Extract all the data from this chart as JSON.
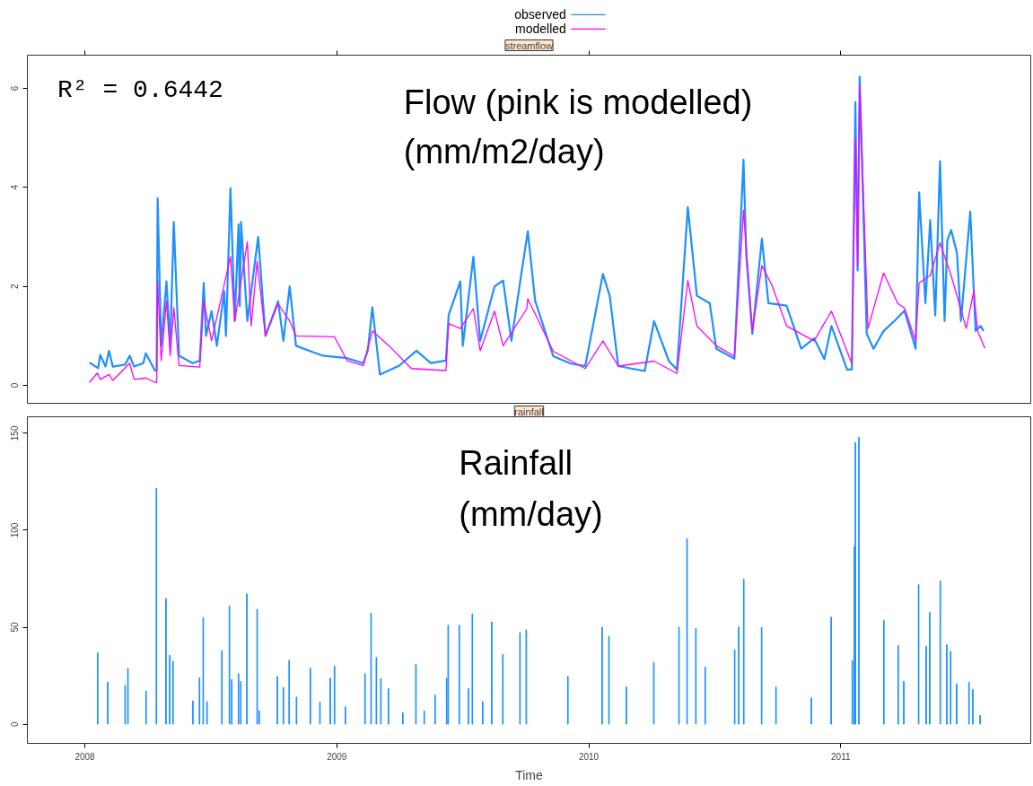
{
  "chart_data": [
    {
      "type": "line",
      "title": "streamflow",
      "xlim": [
        2007.772,
        2011.754
      ],
      "xticks": [
        2008,
        2009,
        2010,
        2011
      ],
      "ylim": [
        -0.38,
        6.67
      ],
      "yticks": [
        0,
        2,
        4,
        6
      ],
      "tick_labels": "y",
      "legend": "top",
      "annotations": [
        "R² = 0.6442",
        "Flow (pink is modelled)",
        "(mm/m2/day)"
      ],
      "series": [
        {
          "name": "observed",
          "color": "#1e90ff",
          "x": [
            2008.018,
            2008.053,
            2008.061,
            2008.082,
            2008.096,
            2008.111,
            2008.16,
            2008.178,
            2008.196,
            2008.232,
            2008.242,
            2008.278,
            2008.285,
            2008.289,
            2008.303,
            2008.324,
            2008.339,
            2008.353,
            2008.374,
            2008.428,
            2008.456,
            2008.472,
            2008.481,
            2008.503,
            2008.524,
            2008.553,
            2008.56,
            2008.578,
            2008.595,
            2008.61,
            2008.615,
            2008.62,
            2008.645,
            2008.688,
            2008.717,
            2008.767,
            2008.788,
            2008.813,
            2008.838,
            2008.891,
            2008.945,
            2009.041,
            2009.105,
            2009.123,
            2009.141,
            2009.171,
            2009.248,
            2009.316,
            2009.373,
            2009.433,
            2009.444,
            2009.49,
            2009.5,
            2009.542,
            2009.569,
            2009.626,
            2009.66,
            2009.693,
            2009.729,
            2009.758,
            2009.787,
            2009.859,
            2009.929,
            2009.986,
            2010.056,
            2010.083,
            2010.117,
            2010.222,
            2010.259,
            2010.318,
            2010.35,
            2010.393,
            2010.429,
            2010.48,
            2010.506,
            2010.578,
            2010.596,
            2010.614,
            2010.625,
            2010.649,
            2010.687,
            2010.713,
            2010.785,
            2010.843,
            2010.894,
            2010.935,
            2010.963,
            2011.025,
            2011.044,
            2011.058,
            2011.067,
            2011.075,
            2011.103,
            2011.13,
            2011.17,
            2011.213,
            2011.253,
            2011.297,
            2011.311,
            2011.336,
            2011.355,
            2011.375,
            2011.394,
            2011.412,
            2011.423,
            2011.438,
            2011.461,
            2011.477,
            2011.514,
            2011.535,
            2011.555,
            2011.567
          ],
          "values": [
            0.46,
            0.35,
            0.62,
            0.38,
            0.7,
            0.38,
            0.42,
            0.6,
            0.38,
            0.45,
            0.65,
            0.3,
            0.3,
            3.78,
            0.8,
            2.1,
            0.8,
            3.3,
            0.6,
            0.45,
            0.5,
            2.07,
            1.0,
            1.5,
            0.8,
            1.9,
            1.0,
            3.98,
            1.3,
            3.25,
            1.6,
            3.3,
            1.3,
            3.0,
            1.0,
            1.7,
            0.9,
            2.0,
            0.8,
            0.7,
            0.6,
            0.55,
            0.45,
            0.7,
            1.58,
            0.22,
            0.4,
            0.7,
            0.45,
            0.5,
            1.42,
            2.1,
            0.8,
            2.6,
            0.9,
            2.0,
            2.12,
            0.9,
            2.14,
            3.11,
            1.71,
            0.59,
            0.44,
            0.39,
            2.25,
            1.81,
            0.39,
            0.29,
            1.3,
            0.49,
            0.32,
            3.6,
            1.81,
            1.66,
            0.74,
            0.54,
            2.53,
            4.56,
            2.63,
            1.04,
            2.96,
            1.66,
            1.61,
            0.74,
            0.95,
            0.53,
            1.2,
            0.32,
            0.32,
            5.72,
            2.32,
            6.24,
            1.04,
            0.74,
            1.1,
            1.3,
            1.51,
            0.74,
            3.9,
            1.66,
            3.34,
            1.41,
            4.53,
            1.3,
            2.93,
            3.14,
            2.68,
            1.3,
            3.51,
            1.1,
            1.2,
            1.1
          ]
        },
        {
          "name": "modelled",
          "color": "#ff00ff",
          "x": [
            2008.018,
            2008.05,
            2008.061,
            2008.096,
            2008.111,
            2008.178,
            2008.196,
            2008.242,
            2008.278,
            2008.285,
            2008.289,
            2008.303,
            2008.324,
            2008.339,
            2008.353,
            2008.374,
            2008.456,
            2008.472,
            2008.503,
            2008.578,
            2008.595,
            2008.645,
            2008.66,
            2008.684,
            2008.717,
            2008.767,
            2008.813,
            2008.838,
            2008.991,
            2009.041,
            2009.105,
            2009.141,
            2009.207,
            2009.296,
            2009.433,
            2009.444,
            2009.49,
            2009.542,
            2009.569,
            2009.626,
            2009.66,
            2009.754,
            2009.758,
            2009.859,
            2009.986,
            2010.056,
            2010.117,
            2010.259,
            2010.35,
            2010.393,
            2010.429,
            2010.506,
            2010.578,
            2010.614,
            2010.649,
            2010.687,
            2010.727,
            2010.785,
            2010.894,
            2010.963,
            2011.044,
            2011.058,
            2011.067,
            2011.075,
            2011.108,
            2011.17,
            2011.226,
            2011.253,
            2011.297,
            2011.311,
            2011.355,
            2011.394,
            2011.438,
            2011.498,
            2011.528,
            2011.543,
            2011.572
          ],
          "values": [
            0.06,
            0.25,
            0.12,
            0.22,
            0.1,
            0.45,
            0.12,
            0.15,
            0.06,
            0.06,
            2.1,
            0.5,
            1.7,
            0.6,
            1.57,
            0.4,
            0.37,
            1.7,
            0.9,
            2.6,
            1.3,
            2.9,
            1.2,
            2.5,
            1.0,
            1.65,
            1.3,
            1.0,
            0.98,
            0.5,
            0.4,
            1.1,
            0.8,
            0.34,
            0.3,
            1.25,
            1.15,
            1.55,
            0.7,
            1.5,
            0.8,
            1.55,
            1.75,
            0.69,
            0.34,
            0.9,
            0.39,
            0.49,
            0.24,
            2.12,
            1.2,
            0.8,
            0.59,
            3.54,
            1.1,
            2.42,
            2.02,
            1.2,
            0.9,
            1.5,
            0.44,
            5.0,
            2.42,
            6.07,
            1.15,
            2.27,
            1.66,
            1.56,
            0.9,
            2.07,
            2.22,
            2.88,
            2.22,
            1.15,
            1.91,
            1.1,
            0.75
          ]
        }
      ]
    },
    {
      "type": "bar",
      "title": "rainfall",
      "xlabel": "Time",
      "xlim": [
        2007.772,
        2011.754
      ],
      "xticks": [
        2008,
        2009,
        2010,
        2011
      ],
      "ylim": [
        -9.9,
        158.5
      ],
      "yticks": [
        0,
        50,
        100,
        150
      ],
      "color": "#1e90ff",
      "annotations": [
        "Rainfall",
        "(mm/day)"
      ],
      "x": [
        2008.051,
        2008.091,
        2008.16,
        2008.171,
        2008.243,
        2008.284,
        2008.322,
        2008.337,
        2008.35,
        2008.429,
        2008.455,
        2008.47,
        2008.485,
        2008.544,
        2008.574,
        2008.583,
        2008.61,
        2008.619,
        2008.643,
        2008.684,
        2008.692,
        2008.764,
        2008.788,
        2008.811,
        2008.84,
        2008.895,
        2008.933,
        2008.974,
        2008.991,
        2009.034,
        2009.112,
        2009.136,
        2009.157,
        2009.175,
        2009.205,
        2009.262,
        2009.314,
        2009.347,
        2009.39,
        2009.436,
        2009.442,
        2009.486,
        2009.522,
        2009.538,
        2009.579,
        2009.615,
        2009.659,
        2009.727,
        2009.752,
        2009.917,
        2010.053,
        2010.08,
        2010.149,
        2010.258,
        2010.358,
        2010.39,
        2010.425,
        2010.462,
        2010.579,
        2010.595,
        2010.615,
        2010.686,
        2010.743,
        2010.883,
        2010.962,
        2011.046,
        2011.054,
        2011.058,
        2011.072,
        2011.171,
        2011.228,
        2011.25,
        2011.309,
        2011.339,
        2011.353,
        2011.395,
        2011.421,
        2011.436,
        2011.46,
        2011.509,
        2011.524,
        2011.553
      ],
      "values": [
        36.8,
        21.7,
        20,
        28.8,
        17,
        121.7,
        64.8,
        35.5,
        32.5,
        12,
        24,
        55,
        11.6,
        38,
        61,
        23,
        26,
        22,
        67.2,
        59.3,
        7,
        24.6,
        19,
        33,
        14,
        29,
        11.4,
        23.7,
        30,
        9,
        26,
        57.3,
        34.4,
        23.6,
        18.4,
        6,
        30.8,
        6.9,
        15,
        23.7,
        51,
        51,
        18.4,
        56.9,
        11.6,
        52.7,
        36,
        47.3,
        48.7,
        24.7,
        49.9,
        45.3,
        19.2,
        31.9,
        50.1,
        95.7,
        49.4,
        29.5,
        38.4,
        50.1,
        74.8,
        49.9,
        19.2,
        13.5,
        55.2,
        32.8,
        91.6,
        145.3,
        147.9,
        53.5,
        40.5,
        22.1,
        71.9,
        40.2,
        57.6,
        73.9,
        41,
        37.6,
        20.8,
        21.6,
        17.8,
        4.5
      ]
    }
  ]
}
